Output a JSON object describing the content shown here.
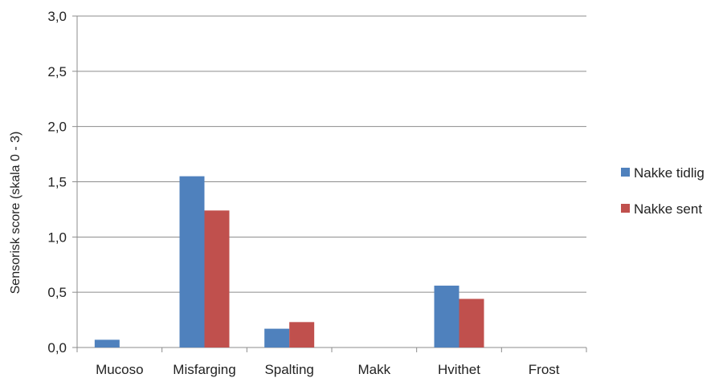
{
  "chart_data": {
    "type": "bar",
    "title": "",
    "xlabel": "",
    "ylabel": "Sensorisk score (skala 0 - 3)",
    "categories": [
      "Mucoso",
      "Misfarging",
      "Spalting",
      "Makk",
      "Hvithet",
      "Frost"
    ],
    "series": [
      {
        "name": "Nakke tidlig",
        "color": "#4f81bd",
        "values": [
          0.07,
          1.55,
          0.17,
          0,
          0.56,
          0
        ]
      },
      {
        "name": "Nakke sent",
        "color": "#c0504d",
        "values": [
          0,
          1.24,
          0.23,
          0,
          0.44,
          0
        ]
      }
    ],
    "ylim": [
      0,
      3
    ],
    "yticks": [
      "0,0",
      "0,5",
      "1,0",
      "1,5",
      "2,0",
      "2,5",
      "3,0"
    ],
    "grid": true,
    "legend_position": "right"
  }
}
